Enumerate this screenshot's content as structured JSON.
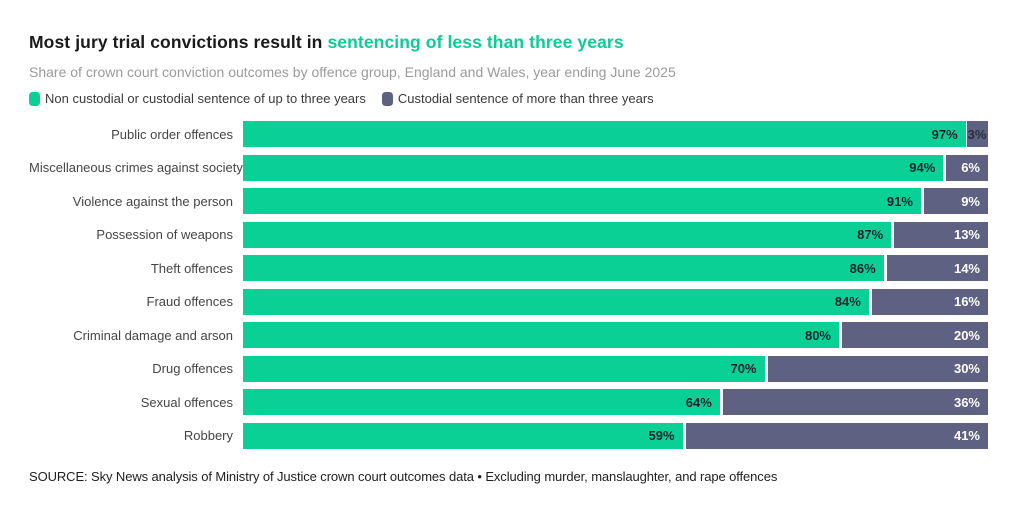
{
  "header": {
    "title_prefix": "Most jury trial convictions result in ",
    "title_highlight": "sentencing of less than three years",
    "subtitle": "Share of crown court conviction outcomes by offence group, England and Wales, year ending June 2025"
  },
  "legend": {
    "items": [
      {
        "label": "Non custodial or custodial sentence of up to three years",
        "color": "#0ad096"
      },
      {
        "label": "Custodial sentence of more than three years",
        "color": "#5f6183"
      }
    ]
  },
  "chart_data": {
    "type": "bar",
    "orientation": "horizontal",
    "stacked": true,
    "grid": false,
    "legend_position": "top",
    "value_suffix": "%",
    "xlim": [
      0,
      100
    ],
    "categories": [
      "Public order offences",
      "Miscellaneous crimes against society",
      "Violence against the person",
      "Possession of weapons",
      "Theft offences",
      "Fraud offences",
      "Criminal damage and arson",
      "Drug offences",
      "Sexual offences",
      "Robbery"
    ],
    "series": [
      {
        "name": "Non custodial or custodial sentence of up to three years",
        "color": "#0ad096",
        "label_color": "#16212b",
        "values": [
          97,
          94,
          91,
          87,
          86,
          84,
          80,
          70,
          64,
          59
        ]
      },
      {
        "name": "Custodial sentence of more than three years",
        "color": "#5f6183",
        "label_color": "#ffffff",
        "values": [
          3,
          6,
          9,
          13,
          14,
          16,
          20,
          30,
          36,
          41
        ]
      }
    ]
  },
  "source": "SOURCE: Sky News analysis of Ministry of Justice crown court outcomes data • Excluding murder, manslaughter, and rape offences"
}
